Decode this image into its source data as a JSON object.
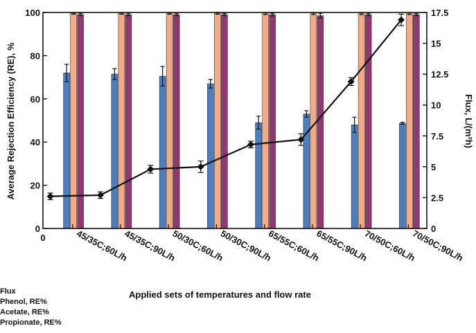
{
  "chart_data": {
    "type": "bar",
    "categories": [
      "45/35C;60L/h",
      "45/35C;90L/h",
      "50/30C;60L/h",
      "50/30C;90L/h",
      "65/55C;60L/h",
      "65/55C;90L/h",
      "70/50C;60L/h",
      "70/50C;90L/h"
    ],
    "series": [
      {
        "name": "Phenol, RE%",
        "axis": "left",
        "color": "#4a7fc1",
        "values": [
          72,
          71.5,
          70.5,
          67,
          49,
          53,
          48,
          48.7
        ],
        "errors": [
          4,
          2.5,
          4.5,
          2,
          3,
          1.5,
          3.5,
          0.5
        ]
      },
      {
        "name": "Acetate, RE%",
        "axis": "left",
        "color": "#f2ab84",
        "values": [
          99.6,
          99.6,
          99.6,
          99.6,
          99.5,
          99.5,
          99.5,
          99.5
        ],
        "errors": [
          0.4,
          0.4,
          0.4,
          0.4,
          0.5,
          0.5,
          0.5,
          0.5
        ]
      },
      {
        "name": "Propionate, RE%",
        "axis": "left",
        "color": "#8e3a6e",
        "values": [
          99,
          99,
          99,
          99,
          99,
          98.5,
          99,
          99
        ],
        "errors": [
          0.5,
          0.5,
          0.5,
          0.5,
          0.6,
          1,
          0.5,
          0.5
        ]
      },
      {
        "name": "Flux",
        "axis": "right",
        "type": "line",
        "color": "#111111",
        "values": [
          2.6,
          2.7,
          4.8,
          5.0,
          6.8,
          7.2,
          11.9,
          16.9
        ],
        "errors": [
          0.1,
          0.1,
          0.15,
          0.3,
          0.1,
          0.3,
          0.15,
          0.3
        ]
      }
    ],
    "ylabel": "Average Rejection Efficiency (RE), %",
    "ylim": [
      0,
      100
    ],
    "yticks": [
      0,
      20,
      40,
      60,
      80,
      100
    ],
    "y2label": "Flux, L/(m²h)",
    "y2lim": [
      0,
      17.5
    ],
    "y2ticks": [
      "0",
      "2.5",
      "5",
      "7.5",
      "10",
      "12.5",
      "15",
      "17.5"
    ],
    "xlabel": "Applied sets of temperatures and flow rate",
    "x_origin_label": "0",
    "legend": [
      "Flux",
      "Phenol, RE%",
      "Acetate, RE%",
      "Propionate, RE%"
    ],
    "legend_placement": "bottom-left",
    "grid": false
  }
}
